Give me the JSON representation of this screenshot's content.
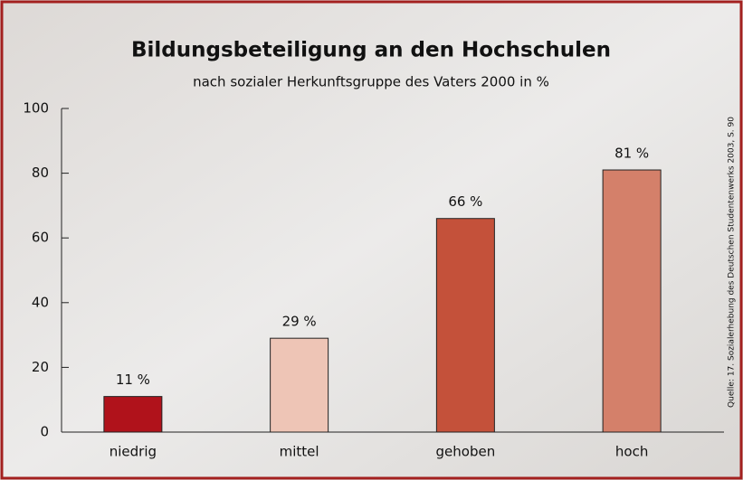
{
  "chart_data": {
    "type": "bar",
    "title": "Bildungsbeteiligung an den Hochschulen",
    "subtitle": "nach sozialer Herkunftsgruppe des Vaters 2000 in %",
    "source": "Quelle: 17. Sozialerhebung des Deutschen Studentenwerks 2003, S. 90",
    "categories": [
      "niedrig",
      "mittel",
      "gehoben",
      "hoch"
    ],
    "values": [
      11,
      29,
      66,
      81
    ],
    "value_labels": [
      "11 %",
      "29 %",
      "66 %",
      "81 %"
    ],
    "colors": [
      "#b0121b",
      "#eec5b6",
      "#c4513a",
      "#d4806a"
    ],
    "ylim": [
      0,
      100
    ],
    "yticks": [
      0,
      20,
      40,
      60,
      80,
      100
    ],
    "grid": false
  }
}
